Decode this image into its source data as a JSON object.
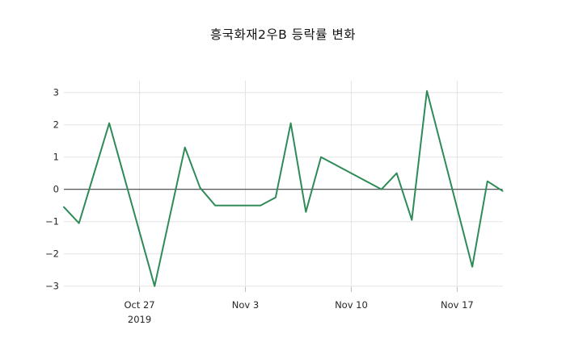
{
  "title": "흥국화재2우B 등락률 변화",
  "colors": {
    "background": "#ffffff",
    "line": "#2e8b57",
    "grid": "#e3e3e3",
    "zero_line": "#404040",
    "tick_mark": "#bbbbbb",
    "tick_text": "#262626",
    "title_text": "#111111"
  },
  "chart_data": {
    "type": "line",
    "title": "흥국화재2우B 등락률 변화",
    "xlabel": "",
    "ylabel": "",
    "legend": "none",
    "grid": true,
    "zero_line": true,
    "xlim_days": [
      0,
      29
    ],
    "ylim": [
      -3.03,
      3.37
    ],
    "x_ticks": [
      {
        "day": 5,
        "label": "Oct 27",
        "sublabel": "2019"
      },
      {
        "day": 12,
        "label": "Nov 3",
        "sublabel": ""
      },
      {
        "day": 19,
        "label": "Nov 10",
        "sublabel": ""
      },
      {
        "day": 26,
        "label": "Nov 17",
        "sublabel": ""
      }
    ],
    "y_ticks": [
      {
        "value": 3,
        "label": "3"
      },
      {
        "value": 2,
        "label": "2"
      },
      {
        "value": 1,
        "label": "1"
      },
      {
        "value": 0,
        "label": "0"
      },
      {
        "value": -1,
        "label": "−1"
      },
      {
        "value": -2,
        "label": "−2"
      },
      {
        "value": -3,
        "label": "−3"
      }
    ],
    "series": [
      {
        "name": "등락률",
        "color": "#2e8b57",
        "points": [
          {
            "date": "Oct 22",
            "day": 0,
            "value": -0.55
          },
          {
            "date": "Oct 23",
            "day": 1,
            "value": -1.05
          },
          {
            "date": "Oct 24",
            "day": 2,
            "value": 0.5
          },
          {
            "date": "Oct 25",
            "day": 3,
            "value": 2.05
          },
          {
            "date": "Oct 28",
            "day": 6,
            "value": -3.0
          },
          {
            "date": "Oct 29",
            "day": 7,
            "value": -0.85
          },
          {
            "date": "Oct 30",
            "day": 8,
            "value": 1.3
          },
          {
            "date": "Oct 31",
            "day": 9,
            "value": 0.05
          },
          {
            "date": "Nov 1",
            "day": 10,
            "value": -0.5
          },
          {
            "date": "Nov 4",
            "day": 13,
            "value": -0.5
          },
          {
            "date": "Nov 5",
            "day": 14,
            "value": -0.25
          },
          {
            "date": "Nov 6",
            "day": 15,
            "value": 2.05
          },
          {
            "date": "Nov 7",
            "day": 16,
            "value": -0.7
          },
          {
            "date": "Nov 8",
            "day": 17,
            "value": 1.0
          },
          {
            "date": "Nov 11",
            "day": 20,
            "value": 0.25
          },
          {
            "date": "Nov 12",
            "day": 21,
            "value": 0.0
          },
          {
            "date": "Nov 13",
            "day": 22,
            "value": 0.5
          },
          {
            "date": "Nov 14",
            "day": 23,
            "value": -0.95
          },
          {
            "date": "Nov 15",
            "day": 24,
            "value": 3.05
          },
          {
            "date": "Nov 18",
            "day": 27,
            "value": -2.4
          },
          {
            "date": "Nov 19",
            "day": 28,
            "value": 0.25
          },
          {
            "date": "Nov 20",
            "day": 29,
            "value": -0.05
          }
        ]
      }
    ]
  }
}
